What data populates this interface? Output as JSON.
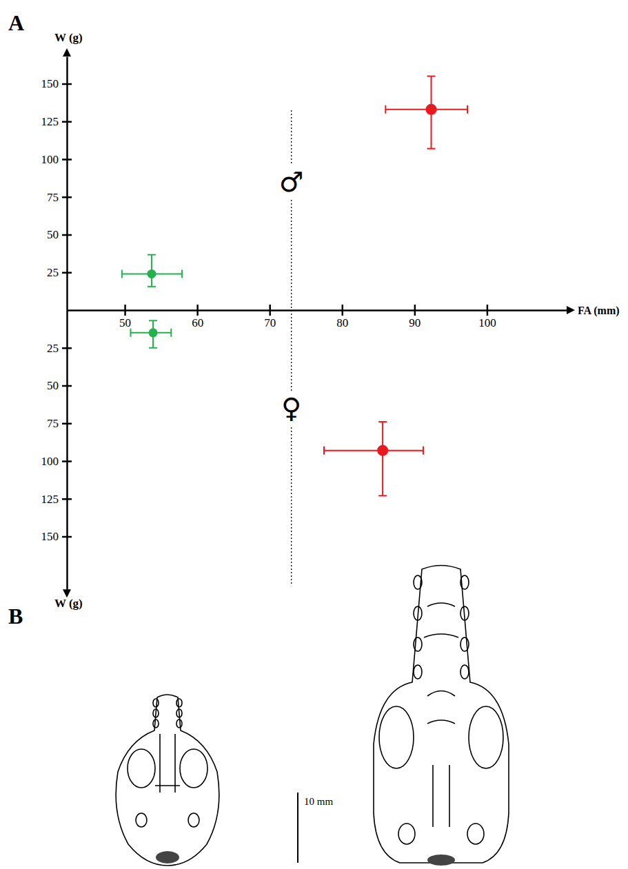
{
  "chart_data": [
    {
      "type": "scatter",
      "panel_label": "A",
      "x_label": "FA (mm)",
      "y_label": "W (g)",
      "xlim": [
        42,
        111
      ],
      "xticks": [
        50,
        60,
        70,
        80,
        90,
        100
      ],
      "ylim": [
        0,
        168
      ],
      "yticks": [
        25,
        50,
        75,
        100,
        125,
        150
      ],
      "threshold_x": 73,
      "annotations": [
        {
          "text": "♂",
          "x": 73,
          "y": 85
        }
      ],
      "series": [
        {
          "color": "#22b24c",
          "x": [
            53.7
          ],
          "values": [
            24
          ],
          "x_error": [
            [
              49.6,
              57.9
            ]
          ],
          "y_error": [
            [
              15.6,
              36.7
            ]
          ]
        },
        {
          "color": "#e8191f",
          "x": [
            92.3
          ],
          "values": [
            133
          ],
          "x_error": [
            [
              86.0,
              97.3
            ]
          ],
          "y_error": [
            [
              107,
              155
            ]
          ]
        }
      ]
    },
    {
      "type": "scatter",
      "y_label": "W (g)",
      "xlim": [
        42,
        111
      ],
      "ylim": [
        185,
        0
      ],
      "yticks": [
        25,
        50,
        75,
        100,
        125,
        150
      ],
      "tick_labels": "y",
      "threshold_x": 73,
      "annotations": [
        {
          "text": "♀",
          "x": 73,
          "y": 65
        }
      ],
      "series": [
        {
          "color": "#22b24c",
          "x": [
            53.9
          ],
          "values": [
            15
          ],
          "x_error": [
            [
              50.8,
              56.4
            ]
          ],
          "y_error": [
            [
              7,
              25
            ]
          ]
        },
        {
          "color": "#e8191f",
          "x": [
            85.6
          ],
          "values": [
            93
          ],
          "x_error": [
            [
              77.5,
              91.2
            ]
          ],
          "y_error": [
            [
              74,
              123
            ]
          ]
        }
      ]
    }
  ],
  "illustration": {
    "panel_label": "B",
    "scale_bar_label": "10 mm"
  }
}
